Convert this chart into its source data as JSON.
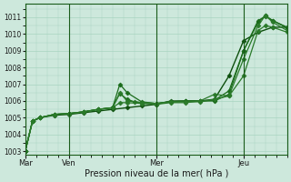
{
  "xlabel": "Pression niveau de la mer( hPa )",
  "ylim": [
    1002.8,
    1011.8
  ],
  "yticks": [
    1003,
    1004,
    1005,
    1006,
    1007,
    1008,
    1009,
    1010,
    1011
  ],
  "xlim": [
    0,
    72
  ],
  "bg_color": "#cde8dc",
  "grid_color": "#a8d4c0",
  "line_color_dark": "#1a5c1a",
  "line_color_med": "#2a7a2a",
  "line_color_light": "#3a9a3a",
  "day_labels": [
    "Mar",
    "Ven",
    "Mer",
    "Jeu"
  ],
  "day_positions": [
    0,
    12,
    36,
    60
  ],
  "series": [
    {
      "x": [
        0,
        2,
        4,
        8,
        12,
        16,
        20,
        24,
        28,
        32,
        36,
        40,
        44,
        48,
        52,
        56,
        60,
        64,
        68,
        72
      ],
      "y": [
        1003.0,
        1004.8,
        1005.0,
        1005.15,
        1005.2,
        1005.3,
        1005.4,
        1005.5,
        1005.6,
        1005.7,
        1005.8,
        1006.0,
        1006.0,
        1006.0,
        1006.1,
        1007.5,
        1009.6,
        1010.1,
        1010.4,
        1010.4
      ],
      "color": "#0d4f0d",
      "lw": 1.0,
      "marker": "D",
      "ms": 2.5
    },
    {
      "x": [
        0,
        2,
        4,
        8,
        12,
        16,
        20,
        24,
        26,
        28,
        30,
        32,
        36,
        40,
        44,
        48,
        52,
        56,
        60,
        64,
        66,
        68,
        72
      ],
      "y": [
        1003.0,
        1004.8,
        1005.0,
        1005.2,
        1005.25,
        1005.35,
        1005.5,
        1005.6,
        1006.45,
        1006.1,
        1005.95,
        1005.9,
        1005.85,
        1005.95,
        1006.0,
        1006.0,
        1006.0,
        1006.4,
        1009.0,
        1010.7,
        1011.1,
        1010.8,
        1010.4
      ],
      "color": "#1a6b1a",
      "lw": 0.9,
      "marker": "D",
      "ms": 2.5
    },
    {
      "x": [
        0,
        2,
        4,
        8,
        12,
        16,
        20,
        24,
        26,
        28,
        32,
        36,
        40,
        44,
        48,
        52,
        56,
        60,
        64,
        66,
        68,
        72
      ],
      "y": [
        1003.0,
        1004.8,
        1005.0,
        1005.2,
        1005.25,
        1005.35,
        1005.5,
        1005.6,
        1007.0,
        1006.5,
        1005.95,
        1005.85,
        1005.95,
        1006.0,
        1006.0,
        1006.05,
        1006.6,
        1009.0,
        1010.8,
        1011.05,
        1010.8,
        1010.35
      ],
      "color": "#1a6b1a",
      "lw": 0.9,
      "marker": "D",
      "ms": 2.5
    },
    {
      "x": [
        0,
        2,
        4,
        8,
        12,
        16,
        20,
        24,
        26,
        28,
        32,
        36,
        40,
        44,
        48,
        52,
        56,
        60,
        64,
        66,
        68,
        72
      ],
      "y": [
        1003.0,
        1004.8,
        1005.0,
        1005.2,
        1005.25,
        1005.35,
        1005.5,
        1005.6,
        1006.5,
        1006.0,
        1005.9,
        1005.85,
        1005.95,
        1005.95,
        1005.95,
        1006.1,
        1006.3,
        1008.5,
        1010.5,
        1011.1,
        1010.7,
        1010.2
      ],
      "color": "#2a7a2a",
      "lw": 0.9,
      "marker": "D",
      "ms": 2.5
    },
    {
      "x": [
        0,
        2,
        4,
        8,
        12,
        16,
        20,
        24,
        26,
        28,
        32,
        36,
        40,
        44,
        48,
        52,
        56,
        60,
        64,
        66,
        68,
        72
      ],
      "y": [
        1003.0,
        1004.8,
        1005.0,
        1005.2,
        1005.25,
        1005.35,
        1005.5,
        1005.6,
        1005.9,
        1005.9,
        1005.85,
        1005.8,
        1005.9,
        1005.9,
        1006.0,
        1006.4,
        1006.3,
        1007.5,
        1010.2,
        1010.5,
        1010.4,
        1010.1
      ],
      "color": "#2a7a2a",
      "lw": 0.9,
      "marker": "D",
      "ms": 2.5
    }
  ]
}
